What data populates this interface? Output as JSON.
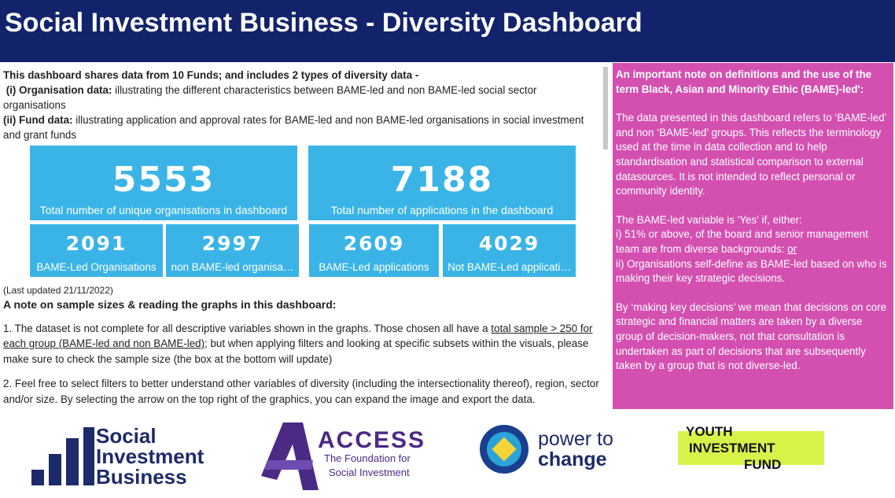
{
  "header": {
    "title": "Social Investment Business - Diversity Dashboard"
  },
  "intro": {
    "heading": "This dashboard shares data from 10 Funds; and includes 2 types of diversity data -",
    "items": [
      {
        "label": "(i) Organisation data:",
        "text": " illustrating the different characteristics between BAME-led and non BAME-led social sector organisations"
      },
      {
        "label": "(ii) Fund data:",
        "text": " illustrating application and approval rates for BAME-led and non BAME-led organisations in social investment and grant funds"
      }
    ]
  },
  "kpis": [
    {
      "value": 5553,
      "label": "Total number of unique organisations in dashboard"
    },
    {
      "value": 7188,
      "label": "Total number of applications in the dashboard"
    }
  ],
  "small_kpis": [
    {
      "value": 2091,
      "label": "BAME-Led Organisations"
    },
    {
      "value": 2997,
      "label": "non BAME-led organisa…"
    },
    {
      "value": 2609,
      "label": "BAME-Led applications"
    },
    {
      "value": 4029,
      "label": "Not BAME-Led applicati…"
    }
  ],
  "last_updated": "(Last updated 21/11/2022)",
  "notes": {
    "heading": "A note on sample sizes & reading the graphs in this dashboard:",
    "p1": {
      "before": "1. The dataset is not complete for all descriptive variables shown in the graphs.  Those chosen all have a ",
      "underlined": "total sample > 250 for each group (BAME-led and non BAME-led)",
      "after": "; but when applying filters and looking at specific subsets within the visuals, please make sure to check the sample size (the box at the bottom will update)"
    },
    "p2": "2. Feel free to select filters to better understand other variables of diversity (including the intersectionality thereof), region, sector and/or size. By selecting the arrow on the top right of the graphics, you can expand the image and export the data."
  },
  "side_note": {
    "heading": "An important note on definitions and the use of the term Black, Asian and Minority Ethic (BAME)-led':",
    "p1": "The data presented in this dashboard refers to ‘BAME-led’ and non ‘BAME-led’ groups. This reflects the terminology used at the time in data collection and to help standardisation and statistical comparison to external datasources. It is not intended to reflect personal or community identity.",
    "p2_intro": "The BAME-led variable is 'Yes' if, either:",
    "p2_i": "i) 51% or above, of the board and senior management team are from diverse backgrounds: ",
    "p2_or": "or",
    "p2_ii": "ii) Organisations self-define as BAME-led based on who is making their key strategic decisions.",
    "p3": "By ‘making key decisions’ we mean that decisions on core strategic and financial matters are taken by a diverse group of decision-makers, not that consultation is undertaken as part of decisions that are subsequently taken by a group that is not diverse-led."
  },
  "logos": {
    "sib": [
      "Social",
      "Investment",
      "Business"
    ],
    "access": {
      "name": "ACCESS",
      "lines": [
        "The Foundation for",
        "Social Investment"
      ]
    },
    "ptc": [
      "power to",
      "change"
    ],
    "yif": [
      "YOUTH",
      "INVESTMENT",
      "FUND"
    ]
  }
}
